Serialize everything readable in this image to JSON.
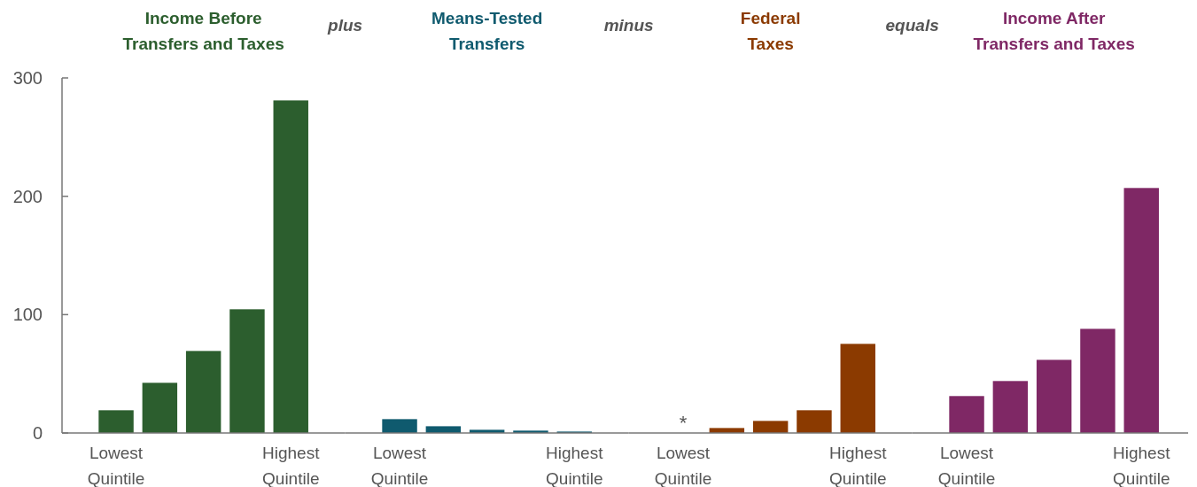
{
  "chart_data": [
    {
      "type": "bar",
      "title": "Income Before\nTransfers and Taxes",
      "categories": [
        "Lowest Quintile",
        null,
        null,
        null,
        "Highest Quintile"
      ],
      "values": [
        19.2,
        42.4,
        69.3,
        104.5,
        281
      ],
      "color": "#2c5e2e",
      "ylim": [
        0,
        300
      ],
      "yticks": [
        0,
        100,
        200,
        300
      ]
    },
    {
      "type": "bar",
      "title": "Means-Tested\nTransfers",
      "annotations": [
        "plus"
      ],
      "categories": [
        "Lowest Quintile",
        null,
        null,
        null,
        "Highest Quintile"
      ],
      "values": [
        11.7,
        5.7,
        2.7,
        2,
        1.2
      ],
      "color": "#0f5a6e",
      "ylim": [
        0,
        300
      ],
      "tick_labels": "x"
    },
    {
      "type": "bar",
      "title": "Federal\nTaxes",
      "annotations": [
        "minus"
      ],
      "categories": [
        "Lowest Quintile",
        null,
        null,
        null,
        "Highest Quintile"
      ],
      "values": [
        0,
        4.2,
        10.2,
        19.2,
        75.3
      ],
      "value_labels": [
        "*",
        null,
        null,
        null,
        null
      ],
      "color": "#8b3a00",
      "ylim": [
        0,
        300
      ],
      "tick_labels": "x"
    },
    {
      "type": "bar",
      "title": "Income After\nTransfers and Taxes",
      "annotations": [
        "equals"
      ],
      "categories": [
        "Lowest Quintile",
        null,
        null,
        null,
        "Highest Quintile"
      ],
      "values": [
        31.2,
        43.9,
        61.8,
        88,
        207
      ],
      "color": "#7f2865",
      "ylim": [
        0,
        300
      ],
      "tick_labels": "x"
    }
  ]
}
